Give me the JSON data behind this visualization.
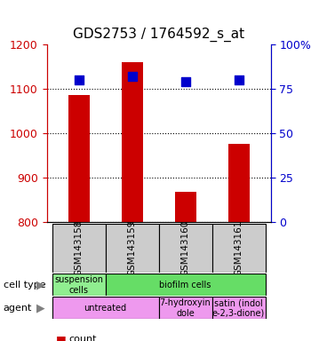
{
  "title": "GDS2753 / 1764592_s_at",
  "samples": [
    "GSM143158",
    "GSM143159",
    "GSM143160",
    "GSM143161"
  ],
  "count_values": [
    1085,
    1160,
    868,
    975
  ],
  "percentile_values": [
    80,
    82,
    79,
    80
  ],
  "ylim_left": [
    800,
    1200
  ],
  "ylim_right": [
    0,
    100
  ],
  "yticks_left": [
    800,
    900,
    1000,
    1100,
    1200
  ],
  "yticks_right": [
    0,
    25,
    50,
    75,
    100
  ],
  "ytick_labels_right": [
    "0",
    "25",
    "50",
    "75",
    "100%"
  ],
  "bar_color": "#cc0000",
  "dot_color": "#0000cc",
  "grid_color": "#000000",
  "cell_type_row": [
    {
      "label": "suspension\ncells",
      "color": "#90ee90",
      "span": 1
    },
    {
      "label": "biofilm cells",
      "color": "#66dd66",
      "span": 3
    }
  ],
  "agent_row": [
    {
      "label": "untreated",
      "color": "#ee99ee",
      "span": 2
    },
    {
      "label": "7-hydroxyin\ndole",
      "color": "#ee99ee",
      "span": 1
    },
    {
      "label": "satin (indol\ne-2,3-dione)",
      "color": "#ee99ee",
      "span": 1
    }
  ],
  "sample_box_color": "#cccccc",
  "legend_count_color": "#cc0000",
  "legend_pct_color": "#0000cc",
  "left_label_color": "#cc0000",
  "right_label_color": "#0000cc",
  "bar_width": 0.4,
  "dot_size": 60
}
